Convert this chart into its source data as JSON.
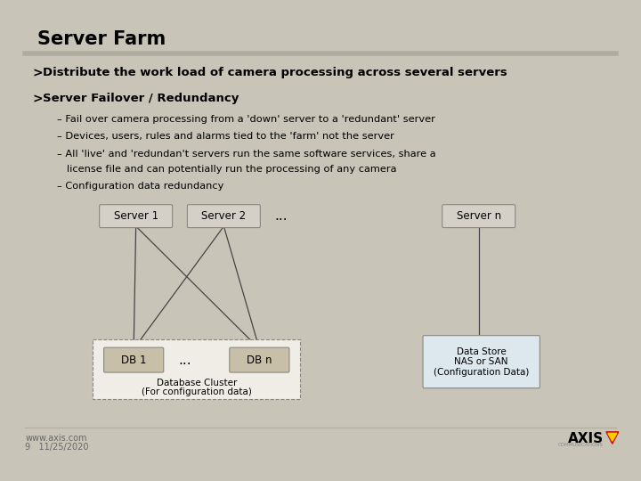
{
  "title": "Server Farm",
  "bg_color": "#c8c5b8",
  "slide_bg": "#ffffff",
  "title_color": "#000000",
  "rule_color": "#b0ada0",
  "bullet1_arrow": ">",
  "bullet1_text": " Distribute the work load of camera processing across several servers",
  "bullet2_arrow": ">",
  "bullet2_text": " Server Failover / Redundancy",
  "sub1": "– Fail over camera processing from a 'down' server to a 'redundant' server",
  "sub2": "– Devices, users, rules and alarms tied to the 'farm' not the server",
  "sub3a": "– All 'live' and 'redundan't servers run the same software services, share a",
  "sub3b": "   license file and can potentially run the processing of any camera",
  "sub4": "– Configuration data redundancy",
  "footer_left": "www.axis.com",
  "footer_page": "9",
  "footer_date": "11/25/2020",
  "server_box_color": "#d4d0c8",
  "server_box_edge": "#888880",
  "db_box_color": "#c8bfa8",
  "db_box_edge": "#888880",
  "datastore_box_color": "#dde8ee",
  "datastore_box_edge": "#888880",
  "server_labels": [
    "Server 1",
    "Server 2",
    "Server n"
  ],
  "db_labels": [
    "DB 1",
    "DB n"
  ],
  "db_cluster_label1": "Database Cluster",
  "db_cluster_label2": "(For configuration data)",
  "datastore_label": "Data Store\nNAS or SAN\n(Configuration Data)",
  "dots": "..."
}
